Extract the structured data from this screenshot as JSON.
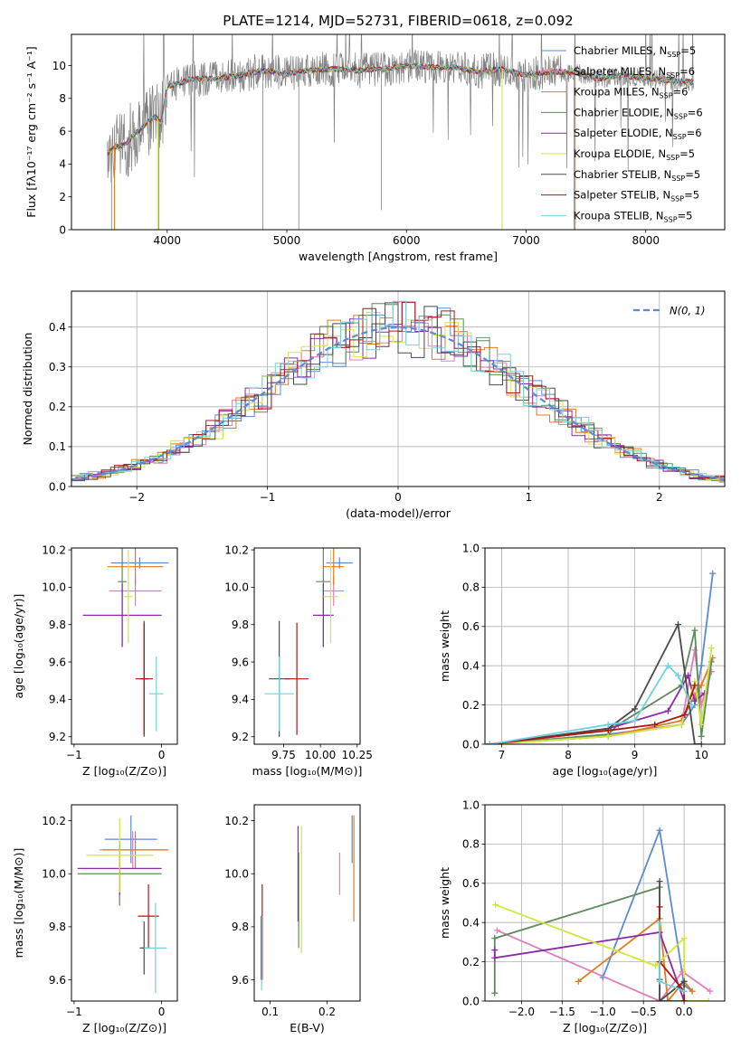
{
  "colors": {
    "Chabrier MILES": "#5b8bd6",
    "Salpeter MILES": "#e07dbb",
    "Kroupa MILES": "#e07b20",
    "Chabrier ELODIE": "#5e8a5c",
    "Salpeter ELODIE": "#8b2aa5",
    "Kroupa ELODIE": "#d2e640",
    "Chabrier STELIB": "#4a4a4a",
    "Salpeter STELIB": "#b01515",
    "Kroupa STELIB": "#6fd3df",
    "data": "#808080"
  },
  "chart_data": [
    {
      "id": "spectrum",
      "type": "line",
      "title": "PLATE=1214, MJD=52731, FIBERID=0618, z=0.092",
      "xlabel": "wavelength [Angstrom, rest frame]",
      "ylabel": "Flux [fλ10⁻¹⁷ erg cm⁻² s⁻¹ A⁻¹]",
      "xlim": [
        3200,
        8660
      ],
      "ylim": [
        0,
        11.9
      ],
      "xticks": [
        "4000",
        "5000",
        "6000",
        "7000",
        "8000"
      ],
      "yticks": [
        "0",
        "2",
        "4",
        "6",
        "8",
        "10"
      ],
      "legend_position": "top-right",
      "legend": [
        {
          "series": "Chabrier MILES",
          "label": "Chabrier MILES, N",
          "sub": "SSP",
          "tail": "=5"
        },
        {
          "series": "Salpeter MILES",
          "label": "Salpeter MILES, N",
          "sub": "SSP",
          "tail": "=6"
        },
        {
          "series": "Kroupa MILES",
          "label": "Kroupa MILES, N",
          "sub": "SSP",
          "tail": "=6"
        },
        {
          "series": "Chabrier ELODIE",
          "label": "Chabrier ELODIE, N",
          "sub": "SSP",
          "tail": "=6"
        },
        {
          "series": "Salpeter ELODIE",
          "label": "Salpeter ELODIE, N",
          "sub": "SSP",
          "tail": "=6"
        },
        {
          "series": "Kroupa ELODIE",
          "label": "Kroupa ELODIE, N",
          "sub": "SSP",
          "tail": "=5"
        },
        {
          "series": "Chabrier STELIB",
          "label": "Chabrier STELIB, N",
          "sub": "SSP",
          "tail": "=5"
        },
        {
          "series": "Salpeter STELIB",
          "label": "Salpeter STELIB, N",
          "sub": "SSP",
          "tail": "=5"
        },
        {
          "series": "Kroupa STELIB",
          "label": "Kroupa STELIB, N",
          "sub": "SSP",
          "tail": "=5"
        }
      ],
      "continuum": {
        "x": [
          3500,
          3560,
          3650,
          3700,
          3800,
          3900,
          3950,
          4000,
          4100,
          4200,
          4400,
          4600,
          4800,
          5000,
          5200,
          5400,
          5600,
          5800,
          6000,
          6200,
          6400,
          6600,
          6800,
          7000,
          7200,
          7400,
          7600,
          7800,
          8000,
          8200,
          8400
        ],
        "y": [
          4.6,
          5.0,
          5.2,
          5.6,
          6.3,
          6.9,
          6.5,
          8.7,
          8.9,
          9.2,
          9.2,
          9.4,
          9.7,
          9.5,
          9.7,
          9.8,
          9.7,
          9.8,
          10.0,
          9.9,
          9.9,
          9.6,
          9.8,
          9.4,
          9.6,
          9.6,
          9.2,
          9.4,
          9.2,
          9.1,
          9.0
        ]
      }
    },
    {
      "id": "residuals",
      "type": "line",
      "xlabel": "(data-model)/error",
      "ylabel": "Normed distribution",
      "xlim": [
        -2.5,
        2.5
      ],
      "ylim": [
        0,
        0.49
      ],
      "xticks": [
        "−2",
        "−1",
        "0",
        "1",
        "2"
      ],
      "yticks": [
        "0.0",
        "0.1",
        "0.2",
        "0.3",
        "0.4"
      ],
      "grid": true,
      "legend_position": "top-right",
      "legend_label": "N(0, 1)"
    },
    {
      "id": "age_vs_Z",
      "type": "scatter",
      "xlabel": "Z [log₁₀(Z/Z⊙)]",
      "ylabel": "age  [log₁₀(age/yr)]",
      "xlim": [
        -1.03,
        0.18
      ],
      "ylim": [
        9.16,
        10.21
      ],
      "xticks": [
        {
          "v": -1,
          "t": "−1"
        },
        {
          "v": 0,
          "t": "0"
        }
      ],
      "yticks": [
        {
          "v": 9.2,
          "t": "9.2"
        },
        {
          "v": 9.4,
          "t": "9.4"
        },
        {
          "v": 9.6,
          "t": "9.6"
        },
        {
          "v": 9.8,
          "t": "9.8"
        },
        {
          "v": 10.0,
          "t": "10.0"
        },
        {
          "v": 10.2,
          "t": "10.2"
        }
      ],
      "points": [
        {
          "series": "Chabrier MILES",
          "x": -0.25,
          "xerr": 0.33,
          "y": 10.13,
          "yerr": 0.03
        },
        {
          "series": "Salpeter MILES",
          "x": -0.3,
          "xerr": 0.3,
          "y": 9.98,
          "yerr": 0.08
        },
        {
          "series": "Kroupa MILES",
          "x": -0.3,
          "xerr": 0.32,
          "y": 10.11,
          "yerr": 0.1
        },
        {
          "series": "Chabrier ELODIE",
          "x": -0.45,
          "xerr": 0.05,
          "y": 10.03,
          "yerr": 0.35
        },
        {
          "series": "Salpeter ELODIE",
          "x": -0.45,
          "xerr": 0.45,
          "y": 9.85,
          "yerr": 0.17
        },
        {
          "series": "Kroupa ELODIE",
          "x": -0.38,
          "xerr": 0.05,
          "y": 9.95,
          "yerr": 0.25
        },
        {
          "series": "Chabrier STELIB",
          "x": -0.2,
          "xerr": 0.05,
          "y": 9.51,
          "yerr": 0.31
        },
        {
          "series": "Salpeter STELIB",
          "x": -0.2,
          "xerr": 0.1,
          "y": 9.51,
          "yerr": 0.3
        },
        {
          "series": "Kroupa STELIB",
          "x": -0.06,
          "xerr": 0.08,
          "y": 9.43,
          "yerr": 0.2
        }
      ]
    },
    {
      "id": "age_vs_mass",
      "type": "scatter",
      "xlabel": "mass [log₁₀(M/M⊙)]",
      "ylabel": "",
      "xlim": [
        9.55,
        10.27
      ],
      "ylim": [
        9.16,
        10.21
      ],
      "xticks": [
        {
          "v": 9.75,
          "t": "9.75"
        },
        {
          "v": 10.0,
          "t": "10.00"
        },
        {
          "v": 10.25,
          "t": "10.25"
        }
      ],
      "yticks": [
        {
          "v": 9.2,
          "t": "9.2"
        },
        {
          "v": 9.4,
          "t": "9.4"
        },
        {
          "v": 9.6,
          "t": "9.6"
        },
        {
          "v": 9.8,
          "t": "9.8"
        },
        {
          "v": 10.0,
          "t": "10.0"
        },
        {
          "v": 10.2,
          "t": "10.2"
        }
      ],
      "points": [
        {
          "series": "Chabrier MILES",
          "x": 10.13,
          "xerr": 0.09,
          "y": 10.13,
          "yerr": 0.03
        },
        {
          "series": "Salpeter MILES",
          "x": 10.09,
          "xerr": 0.07,
          "y": 9.98,
          "yerr": 0.08
        },
        {
          "series": "Kroupa MILES",
          "x": 10.09,
          "xerr": 0.07,
          "y": 10.11,
          "yerr": 0.1
        },
        {
          "series": "Chabrier ELODIE",
          "x": 10.02,
          "xerr": 0.05,
          "y": 10.03,
          "yerr": 0.35
        },
        {
          "series": "Salpeter ELODIE",
          "x": 10.02,
          "xerr": 0.07,
          "y": 9.85,
          "yerr": 0.17
        },
        {
          "series": "Kroupa ELODIE",
          "x": 10.07,
          "xerr": 0.05,
          "y": 9.95,
          "yerr": 0.25
        },
        {
          "series": "Chabrier STELIB",
          "x": 9.72,
          "xerr": 0.07,
          "y": 9.51,
          "yerr": 0.31
        },
        {
          "series": "Salpeter STELIB",
          "x": 9.84,
          "xerr": 0.08,
          "y": 9.51,
          "yerr": 0.3
        },
        {
          "series": "Kroupa STELIB",
          "x": 9.72,
          "xerr": 0.1,
          "y": 9.43,
          "yerr": 0.2
        }
      ]
    },
    {
      "id": "weight_vs_age",
      "type": "line",
      "xlabel": "age  [log₁₀(age/yr)]",
      "ylabel": "mass weight",
      "xlim": [
        6.75,
        10.35
      ],
      "ylim": [
        0,
        1.0
      ],
      "grid": true,
      "xticks": [
        {
          "v": 7,
          "t": "7"
        },
        {
          "v": 8,
          "t": "8"
        },
        {
          "v": 9,
          "t": "9"
        },
        {
          "v": 10,
          "t": "10"
        }
      ],
      "yticks": [
        {
          "v": 0,
          "t": "0.0"
        },
        {
          "v": 0.2,
          "t": "0.2"
        },
        {
          "v": 0.4,
          "t": "0.4"
        },
        {
          "v": 0.6,
          "t": "0.6"
        },
        {
          "v": 0.8,
          "t": "0.8"
        },
        {
          "v": 1.0,
          "t": "1.0"
        }
      ],
      "series": [
        {
          "name": "Chabrier MILES",
          "x": [
            6.82,
            8.6,
            9.7,
            9.9,
            10.0,
            10.17
          ],
          "y": [
            0.0,
            0.05,
            0.1,
            0.2,
            0.4,
            0.87
          ]
        },
        {
          "name": "Salpeter MILES",
          "x": [
            6.82,
            8.6,
            9.7,
            9.9,
            10.0,
            10.15
          ],
          "y": [
            0.0,
            0.04,
            0.1,
            0.48,
            0.2,
            0.37
          ]
        },
        {
          "name": "Kroupa MILES",
          "x": [
            6.82,
            8.6,
            9.7,
            9.9,
            10.0,
            10.17
          ],
          "y": [
            0.0,
            0.04,
            0.12,
            0.25,
            0.3,
            0.44
          ]
        },
        {
          "name": "Chabrier ELODIE",
          "x": [
            6.82,
            8.6,
            8.75,
            9.7,
            9.9,
            10.0,
            10.15
          ],
          "y": [
            0.0,
            0.05,
            0.1,
            0.3,
            0.58,
            0.04,
            0.42
          ]
        },
        {
          "name": "Salpeter ELODIE",
          "x": [
            6.82,
            8.6,
            9.5,
            9.8,
            9.9,
            10.05
          ],
          "y": [
            0.0,
            0.08,
            0.17,
            0.35,
            0.22,
            0.26
          ]
        },
        {
          "name": "Kroupa ELODIE",
          "x": [
            6.82,
            8.6,
            9.7,
            9.9,
            10.0,
            10.15
          ],
          "y": [
            0.0,
            0.04,
            0.1,
            0.32,
            0.1,
            0.49
          ]
        },
        {
          "name": "Chabrier STELIB",
          "x": [
            6.82,
            8.6,
            9.0,
            9.65,
            9.9,
            10.0
          ],
          "y": [
            0.0,
            0.08,
            0.18,
            0.61,
            0.0,
            0.0
          ]
        },
        {
          "name": "Salpeter STELIB",
          "x": [
            6.82,
            8.6,
            9.3,
            9.75,
            9.9
          ],
          "y": [
            0.0,
            0.07,
            0.1,
            0.15,
            0.3
          ]
        },
        {
          "name": "Kroupa STELIB",
          "x": [
            6.82,
            8.6,
            9.0,
            9.5,
            9.65,
            9.85
          ],
          "y": [
            0.0,
            0.1,
            0.12,
            0.4,
            0.35,
            0.2
          ]
        }
      ]
    },
    {
      "id": "mass_vs_Z",
      "type": "scatter",
      "xlabel": "Z [log₁₀(Z/Z⊙)]",
      "ylabel": "mass [log₁₀(M/M⊙)]",
      "xlim": [
        -1.03,
        0.18
      ],
      "ylim": [
        9.52,
        10.26
      ],
      "xticks": [
        {
          "v": -1,
          "t": "−1"
        },
        {
          "v": 0,
          "t": "0"
        }
      ],
      "yticks": [
        {
          "v": 9.6,
          "t": "9.6"
        },
        {
          "v": 9.8,
          "t": "9.8"
        },
        {
          "v": 10.0,
          "t": "10.0"
        },
        {
          "v": 10.2,
          "t": "10.2"
        }
      ],
      "points": [
        {
          "series": "Chabrier MILES",
          "x": -0.35,
          "xerr": 0.3,
          "y": 10.13,
          "yerr": 0.09
        },
        {
          "series": "Salpeter MILES",
          "x": -0.33,
          "xerr": 0.38,
          "y": 10.09,
          "yerr": 0.07
        },
        {
          "series": "Kroupa MILES",
          "x": -0.3,
          "xerr": 0.38,
          "y": 10.09,
          "yerr": 0.07
        },
        {
          "series": "Chabrier ELODIE",
          "x": -0.48,
          "xerr": 0.48,
          "y": 10.0,
          "yerr": 0.12
        },
        {
          "series": "Salpeter ELODIE",
          "x": -0.48,
          "xerr": 0.48,
          "y": 10.02,
          "yerr": 0.1
        },
        {
          "series": "Kroupa ELODIE",
          "x": -0.48,
          "xerr": 0.38,
          "y": 10.07,
          "yerr": 0.14
        },
        {
          "series": "Chabrier STELIB",
          "x": -0.2,
          "xerr": 0.05,
          "y": 9.72,
          "yerr": 0.1
        },
        {
          "series": "Salpeter STELIB",
          "x": -0.15,
          "xerr": 0.12,
          "y": 9.84,
          "yerr": 0.12
        },
        {
          "series": "Kroupa STELIB",
          "x": -0.07,
          "xerr": 0.13,
          "y": 9.72,
          "yerr": 0.17
        }
      ]
    },
    {
      "id": "mass_vs_ebv",
      "type": "scatter",
      "xlabel": "E(B-V)",
      "ylabel": "",
      "xlim": [
        0.072,
        0.258
      ],
      "ylim": [
        9.52,
        10.26
      ],
      "xticks": [
        {
          "v": 0.1,
          "t": "0.1"
        },
        {
          "v": 0.2,
          "t": "0.2"
        }
      ],
      "yticks": [
        {
          "v": 9.6,
          "t": "9.6"
        },
        {
          "v": 9.8,
          "t": "9.8"
        },
        {
          "v": 10.0,
          "t": "10.0"
        },
        {
          "v": 10.2,
          "t": "10.2"
        }
      ],
      "points": [
        {
          "series": "Chabrier MILES",
          "x": 0.244,
          "y": 10.13,
          "yerr": 0.09
        },
        {
          "series": "Salpeter MILES",
          "x": 0.222,
          "y": 10.0,
          "yerr": 0.08
        },
        {
          "series": "Kroupa MILES",
          "x": 0.247,
          "y": 10.02,
          "yerr": 0.2
        },
        {
          "series": "Chabrier ELODIE",
          "x": 0.15,
          "y": 9.9,
          "yerr": 0.18
        },
        {
          "series": "Salpeter ELODIE",
          "x": 0.149,
          "y": 10.0,
          "yerr": 0.18
        },
        {
          "series": "Kroupa ELODIE",
          "x": 0.155,
          "y": 9.94,
          "yerr": 0.24
        },
        {
          "series": "Chabrier STELIB",
          "x": 0.084,
          "y": 9.72,
          "yerr": 0.12
        },
        {
          "series": "Salpeter STELIB",
          "x": 0.086,
          "y": 9.78,
          "yerr": 0.18
        },
        {
          "series": "Kroupa STELIB",
          "x": 0.085,
          "y": 9.7,
          "yerr": 0.14
        }
      ]
    },
    {
      "id": "weight_vs_Z",
      "type": "line",
      "xlabel": "Z [log₁₀(Z/Z⊙)]",
      "ylabel": "mass weight",
      "xlim": [
        -2.45,
        0.5
      ],
      "ylim": [
        0,
        1.0
      ],
      "grid": true,
      "xticks": [
        {
          "v": -2.0,
          "t": "−2.0"
        },
        {
          "v": -1.5,
          "t": "−1.5"
        },
        {
          "v": -1.0,
          "t": "−1.0"
        },
        {
          "v": -0.5,
          "t": "−0.5"
        },
        {
          "v": 0.0,
          "t": "0.0"
        }
      ],
      "yticks": [
        {
          "v": 0,
          "t": "0.0"
        },
        {
          "v": 0.2,
          "t": "0.2"
        },
        {
          "v": 0.4,
          "t": "0.4"
        },
        {
          "v": 0.6,
          "t": "0.6"
        },
        {
          "v": 0.8,
          "t": "0.8"
        },
        {
          "v": 1.0,
          "t": "1.0"
        }
      ],
      "series": [
        {
          "name": "Chabrier MILES",
          "x": [
            -1.0,
            -0.3,
            0.0,
            0.1
          ],
          "y": [
            0.12,
            0.87,
            0.08,
            0.05
          ]
        },
        {
          "name": "Salpeter MILES",
          "x": [
            -2.3,
            -0.3,
            -0.02,
            0.32
          ],
          "y": [
            0.36,
            0.0,
            0.15,
            0.05
          ]
        },
        {
          "name": "Kroupa MILES",
          "x": [
            -1.3,
            -0.3,
            -0.2,
            0.0,
            0.1
          ],
          "y": [
            0.1,
            0.42,
            0.0,
            0.1,
            0.05
          ]
        },
        {
          "name": "Chabrier ELODIE",
          "x": [
            -2.33,
            -2.33,
            -0.3,
            -0.3,
            0.0
          ],
          "y": [
            0.04,
            0.32,
            0.58,
            0.0,
            0.0
          ]
        },
        {
          "name": "Salpeter ELODIE",
          "x": [
            -2.33,
            -2.33,
            -0.3,
            0.0
          ],
          "y": [
            0.26,
            0.22,
            0.35,
            0.0
          ]
        },
        {
          "name": "Kroupa ELODIE",
          "x": [
            -2.32,
            -0.35,
            0.0,
            0.0,
            0.3
          ],
          "y": [
            0.49,
            0.18,
            0.32,
            0.0,
            0.0
          ]
        },
        {
          "name": "Chabrier STELIB",
          "x": [
            -0.3,
            -0.3,
            -0.3,
            0.0,
            0.0
          ],
          "y": [
            0.61,
            0.11,
            0.0,
            0.1,
            0.0
          ]
        },
        {
          "name": "Salpeter STELIB",
          "x": [
            -0.3,
            -0.3,
            0.0,
            0.0
          ],
          "y": [
            0.48,
            0.2,
            0.05,
            0.0
          ]
        },
        {
          "name": "Kroupa STELIB",
          "x": [
            -0.3,
            -0.3,
            0.0
          ],
          "y": [
            0.4,
            0.1,
            0.05
          ]
        }
      ]
    }
  ]
}
